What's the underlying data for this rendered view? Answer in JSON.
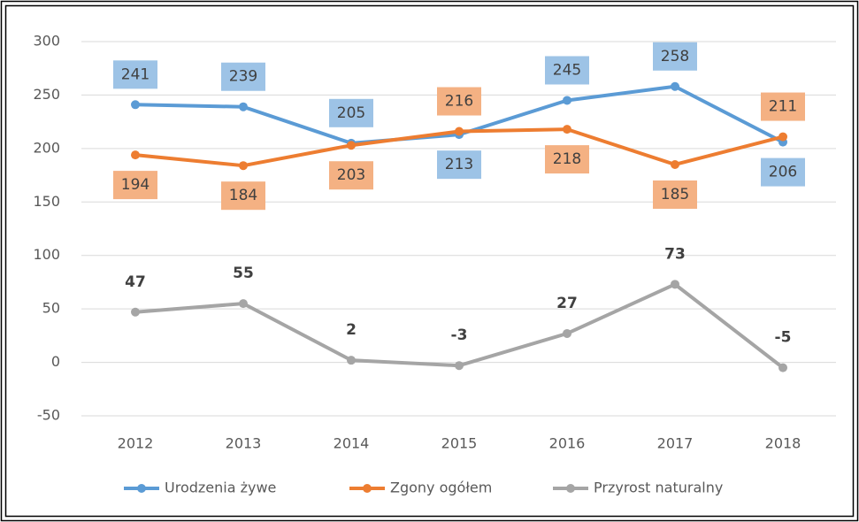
{
  "chart_data": {
    "type": "line",
    "categories": [
      "2012",
      "2013",
      "2014",
      "2015",
      "2016",
      "2017",
      "2018"
    ],
    "series": [
      {
        "name": "Urodzenia żywe",
        "color": "#5b9bd5",
        "label_color": "#9dc3e6",
        "values": [
          241,
          239,
          205,
          213,
          245,
          258,
          206
        ]
      },
      {
        "name": "Zgony ogółem",
        "color": "#ed7d31",
        "label_color": "#f4b183",
        "values": [
          194,
          184,
          203,
          216,
          218,
          185,
          211
        ]
      },
      {
        "name": "Przyrost naturalny",
        "color": "#a5a5a5",
        "values": [
          47,
          55,
          2,
          -3,
          27,
          73,
          -5
        ]
      }
    ],
    "ylim": [
      -50,
      300
    ],
    "yticks": [
      -50,
      0,
      50,
      100,
      150,
      200,
      250,
      300
    ],
    "grid": true,
    "legend": "bottom"
  }
}
